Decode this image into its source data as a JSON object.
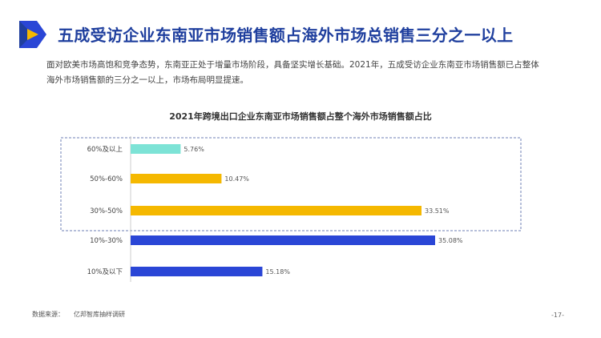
{
  "header": {
    "title": "五成受访企业东南亚市场销售额占海外市场总销售三分之一以上",
    "logo_icon": "play-triangle-logo-icon"
  },
  "description": {
    "line1": "面对欧美市场高饱和竞争态势，东南亚正处于增量市场阶段，具备坚实增长基础。2021年，五成受访企业东南亚市场销售额已占整体",
    "line2": "海外市场销售额的三分之一以上，市场布局明显提速。"
  },
  "chart_data": {
    "type": "bar",
    "orientation": "horizontal",
    "title": "2021年跨境出口企业东南亚市场销售额占整个海外市场销售额占比",
    "categories": [
      "60%及以上",
      "50%-60%",
      "30%-50%",
      "10%-30%",
      "10%及以下"
    ],
    "values": [
      5.76,
      10.47,
      33.51,
      35.08,
      15.18
    ],
    "value_labels": [
      "5.76%",
      "10.47%",
      "33.51%",
      "35.08%",
      "15.18%"
    ],
    "colors": [
      "#7de3d6",
      "#f5b800",
      "#f5b800",
      "#2a46d6",
      "#2a46d6"
    ],
    "xlim": [
      0,
      35.08
    ],
    "highlight_box": "dashed border around top three categories"
  },
  "footer": {
    "source_label": "数据来源：",
    "source_value": "亿邦智库抽样调研",
    "page": "-17-"
  }
}
